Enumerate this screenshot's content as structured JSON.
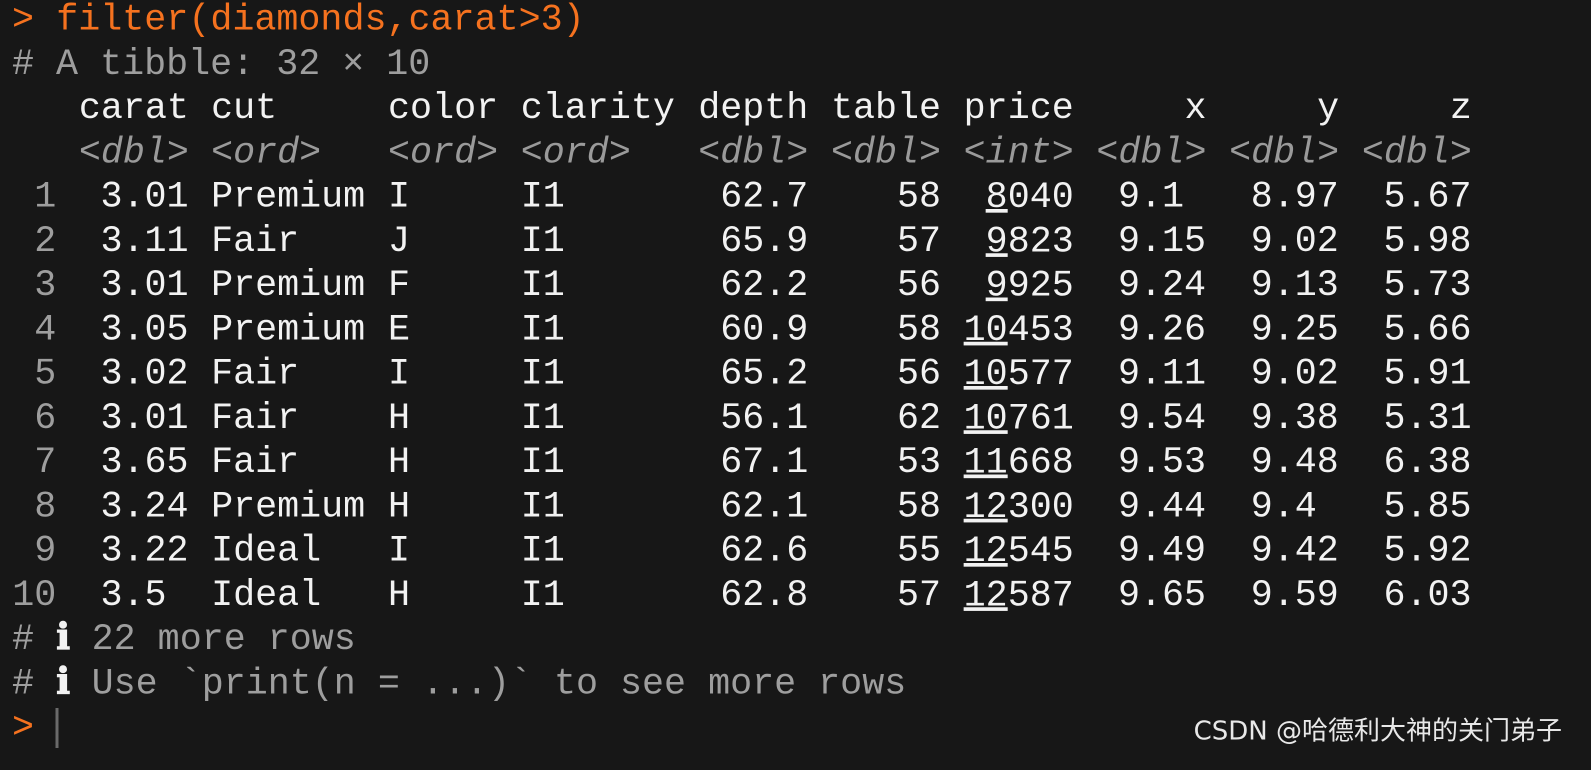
{
  "console": {
    "command_prompt": ">",
    "command": "filter(diamonds,carat>3)",
    "summary": "# A tibble: 32 × 10",
    "columns": [
      {
        "name": "carat",
        "type": "<dbl>"
      },
      {
        "name": "cut",
        "type": "<ord>"
      },
      {
        "name": "color",
        "type": "<ord>"
      },
      {
        "name": "clarity",
        "type": "<ord>"
      },
      {
        "name": "depth",
        "type": "<dbl>"
      },
      {
        "name": "table",
        "type": "<dbl>"
      },
      {
        "name": "price",
        "type": "<int>"
      },
      {
        "name": "x",
        "type": "<dbl>"
      },
      {
        "name": "y",
        "type": "<dbl>"
      },
      {
        "name": "z",
        "type": "<dbl>"
      }
    ],
    "rows": [
      [
        1,
        3.01,
        "Premium",
        "I",
        "I1",
        62.7,
        58,
        8040,
        9.1,
        8.97,
        5.67
      ],
      [
        2,
        3.11,
        "Fair",
        "J",
        "I1",
        65.9,
        57,
        9823,
        9.15,
        9.02,
        5.98
      ],
      [
        3,
        3.01,
        "Premium",
        "F",
        "I1",
        62.2,
        56,
        9925,
        9.24,
        9.13,
        5.73
      ],
      [
        4,
        3.05,
        "Premium",
        "E",
        "I1",
        60.9,
        58,
        10453,
        9.26,
        9.25,
        5.66
      ],
      [
        5,
        3.02,
        "Fair",
        "I",
        "I1",
        65.2,
        56,
        10577,
        9.11,
        9.02,
        5.91
      ],
      [
        6,
        3.01,
        "Fair",
        "H",
        "I1",
        56.1,
        62,
        10761,
        9.54,
        9.38,
        5.31
      ],
      [
        7,
        3.65,
        "Fair",
        "H",
        "I1",
        67.1,
        53,
        11668,
        9.53,
        9.48,
        6.38
      ],
      [
        8,
        3.24,
        "Premium",
        "H",
        "I1",
        62.1,
        58,
        12300,
        9.44,
        9.4,
        5.85
      ],
      [
        9,
        3.22,
        "Ideal",
        "I",
        "I1",
        62.6,
        55,
        12545,
        9.49,
        9.42,
        5.92
      ],
      [
        10,
        3.5,
        "Ideal",
        "H",
        "I1",
        62.8,
        57,
        12587,
        9.65,
        9.59,
        6.03
      ]
    ],
    "footer": [
      {
        "hash": "#",
        "icon": "ℹ",
        "text": "22 more rows"
      },
      {
        "hash": "#",
        "icon": "ℹ",
        "text": "Use `print(n = ...)` to see more rows"
      }
    ],
    "prompt": ">",
    "watermark": "CSDN @哈德利大神的关门弟子"
  }
}
